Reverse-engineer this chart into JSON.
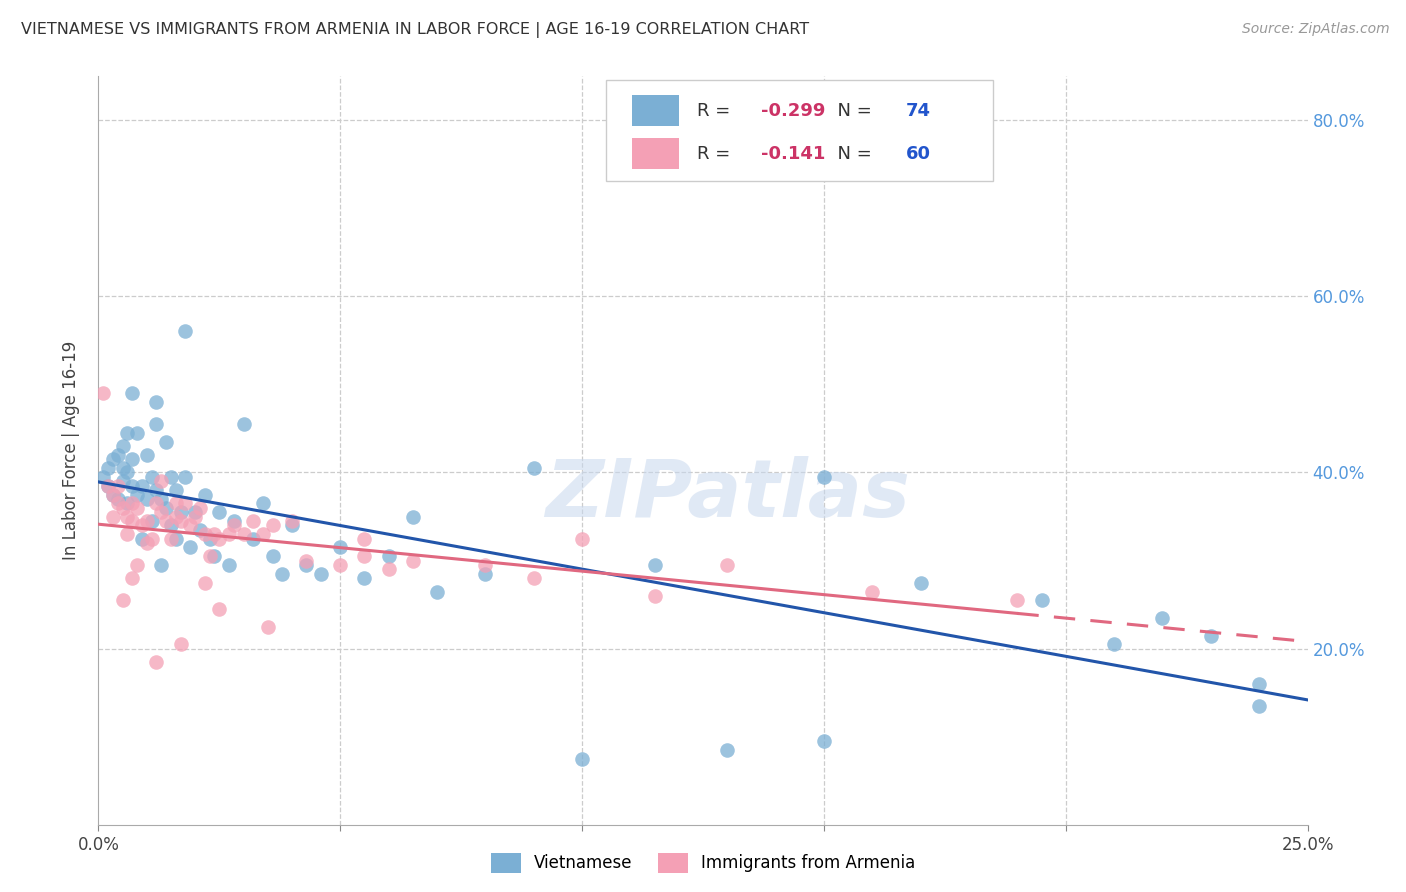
{
  "title": "VIETNAMESE VS IMMIGRANTS FROM ARMENIA IN LABOR FORCE | AGE 16-19 CORRELATION CHART",
  "source": "Source: ZipAtlas.com",
  "ylabel": "In Labor Force | Age 16-19",
  "xlim": [
    0.0,
    0.25
  ],
  "ylim": [
    0.0,
    0.85
  ],
  "xtick_positions": [
    0.0,
    0.05,
    0.1,
    0.15,
    0.2,
    0.25
  ],
  "ytick_positions": [
    0.0,
    0.2,
    0.4,
    0.6,
    0.8
  ],
  "ytick_labels": [
    "",
    "20.0%",
    "40.0%",
    "60.0%",
    "80.0%"
  ],
  "xtick_labels": [
    "0.0%",
    "",
    "",
    "",
    "",
    "25.0%"
  ],
  "grid_color": "#cccccc",
  "background_color": "#ffffff",
  "viet_color": "#7bafd4",
  "armenia_color": "#f4a0b5",
  "viet_line_color": "#2255aa",
  "armenia_line_color": "#e06880",
  "viet_R": -0.299,
  "viet_N": 74,
  "armenia_R": -0.141,
  "armenia_N": 60,
  "viet_x": [
    0.001,
    0.002,
    0.002,
    0.003,
    0.003,
    0.004,
    0.004,
    0.005,
    0.005,
    0.005,
    0.006,
    0.006,
    0.006,
    0.007,
    0.007,
    0.007,
    0.008,
    0.008,
    0.009,
    0.009,
    0.01,
    0.01,
    0.011,
    0.011,
    0.012,
    0.012,
    0.013,
    0.013,
    0.014,
    0.014,
    0.015,
    0.015,
    0.016,
    0.016,
    0.017,
    0.018,
    0.019,
    0.02,
    0.021,
    0.022,
    0.023,
    0.024,
    0.025,
    0.027,
    0.028,
    0.03,
    0.032,
    0.034,
    0.036,
    0.038,
    0.04,
    0.043,
    0.046,
    0.05,
    0.055,
    0.06,
    0.065,
    0.07,
    0.08,
    0.09,
    0.1,
    0.115,
    0.13,
    0.15,
    0.17,
    0.195,
    0.21,
    0.22,
    0.23,
    0.24,
    0.012,
    0.018,
    0.15,
    0.24
  ],
  "viet_y": [
    0.395,
    0.385,
    0.405,
    0.375,
    0.415,
    0.37,
    0.42,
    0.39,
    0.405,
    0.43,
    0.365,
    0.4,
    0.445,
    0.385,
    0.415,
    0.49,
    0.375,
    0.445,
    0.385,
    0.325,
    0.37,
    0.42,
    0.395,
    0.345,
    0.38,
    0.455,
    0.37,
    0.295,
    0.36,
    0.435,
    0.34,
    0.395,
    0.325,
    0.38,
    0.355,
    0.395,
    0.315,
    0.355,
    0.335,
    0.375,
    0.325,
    0.305,
    0.355,
    0.295,
    0.345,
    0.455,
    0.325,
    0.365,
    0.305,
    0.285,
    0.34,
    0.295,
    0.285,
    0.315,
    0.28,
    0.305,
    0.35,
    0.265,
    0.285,
    0.405,
    0.075,
    0.295,
    0.085,
    0.395,
    0.275,
    0.255,
    0.205,
    0.235,
    0.215,
    0.16,
    0.48,
    0.56,
    0.095,
    0.135
  ],
  "armenia_x": [
    0.001,
    0.002,
    0.003,
    0.004,
    0.004,
    0.005,
    0.006,
    0.006,
    0.007,
    0.007,
    0.008,
    0.009,
    0.01,
    0.01,
    0.011,
    0.012,
    0.013,
    0.013,
    0.014,
    0.015,
    0.016,
    0.016,
    0.017,
    0.018,
    0.019,
    0.02,
    0.021,
    0.022,
    0.023,
    0.024,
    0.025,
    0.027,
    0.028,
    0.03,
    0.032,
    0.034,
    0.036,
    0.04,
    0.043,
    0.05,
    0.055,
    0.06,
    0.065,
    0.08,
    0.09,
    0.1,
    0.115,
    0.13,
    0.16,
    0.19,
    0.005,
    0.007,
    0.008,
    0.012,
    0.017,
    0.022,
    0.025,
    0.035,
    0.055,
    0.003
  ],
  "armenia_y": [
    0.49,
    0.385,
    0.375,
    0.365,
    0.385,
    0.36,
    0.33,
    0.35,
    0.345,
    0.365,
    0.36,
    0.34,
    0.345,
    0.32,
    0.325,
    0.365,
    0.355,
    0.39,
    0.345,
    0.325,
    0.365,
    0.35,
    0.345,
    0.365,
    0.34,
    0.35,
    0.36,
    0.33,
    0.305,
    0.33,
    0.325,
    0.33,
    0.34,
    0.33,
    0.345,
    0.33,
    0.34,
    0.345,
    0.3,
    0.295,
    0.325,
    0.29,
    0.3,
    0.295,
    0.28,
    0.325,
    0.26,
    0.295,
    0.265,
    0.255,
    0.255,
    0.28,
    0.295,
    0.185,
    0.205,
    0.275,
    0.245,
    0.225,
    0.305,
    0.35
  ]
}
